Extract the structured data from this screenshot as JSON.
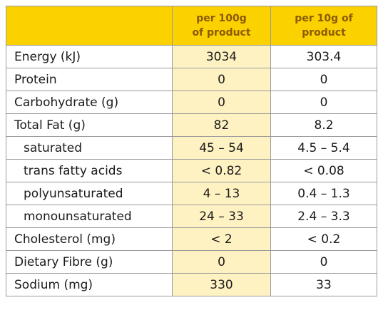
{
  "header": {
    "col1_line1": "per 100g",
    "col1_line2": "of product",
    "col2_line1": "per 10g of",
    "col2_line2": "product"
  },
  "rows": [
    {
      "label": "Energy (kJ)",
      "per100": "3034",
      "per10": "303.4"
    },
    {
      "label": "Protein",
      "per100": "0",
      "per10": "0"
    },
    {
      "label": "Carbohydrate (g)",
      "per100": "0",
      "per10": "0"
    },
    {
      "label": "Total Fat (g)",
      "per100": "82",
      "per10": "8.2"
    },
    {
      "label": "saturated",
      "per100": "45 – 54",
      "per10": "4.5 – 5.4"
    },
    {
      "label": "trans fatty acids",
      "per100": "< 0.82",
      "per10": "< 0.08"
    },
    {
      "label": "polyunsaturated",
      "per100": "4 – 13",
      "per10": "0.4 – 1.3"
    },
    {
      "label": "monounsaturated",
      "per100": "24 – 33",
      "per10": "2.4 – 3.3"
    },
    {
      "label": "Cholesterol (mg)",
      "per100": "< 2",
      "per10": "< 0.2"
    },
    {
      "label": "Dietary Fibre (g)",
      "per100": "0",
      "per10": "0"
    },
    {
      "label": "Sodium (mg)",
      "per100": "330",
      "per10": "33"
    }
  ],
  "colors": {
    "header_bg": "#fcd100",
    "header_text": "#8a5a00",
    "highlight_column_bg": "#fff2c2",
    "border": "#9a9a9a"
  }
}
